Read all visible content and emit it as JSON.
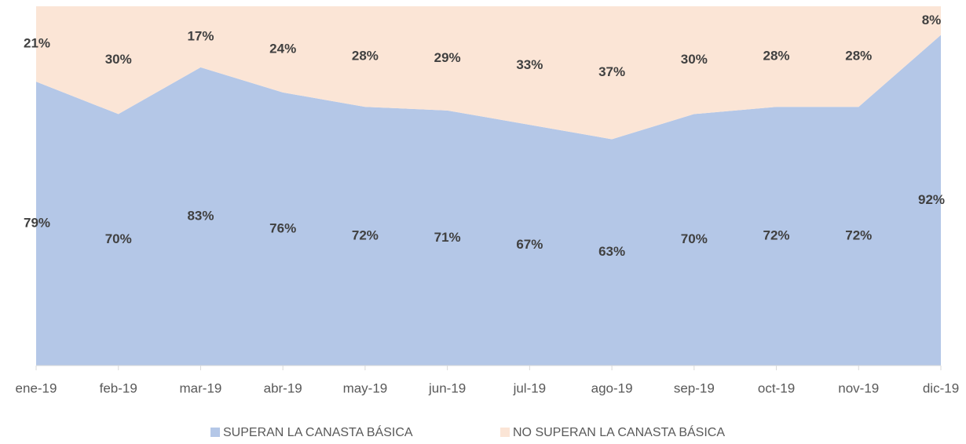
{
  "chart_data": {
    "type": "stacked_area",
    "categories": [
      "ene-19",
      "feb-19",
      "mar-19",
      "abr-19",
      "may-19",
      "jun-19",
      "jul-19",
      "ago-19",
      "sep-19",
      "oct-19",
      "nov-19",
      "dic-19"
    ],
    "series": [
      {
        "name": "SUPERAN LA CANASTA BÁSICA",
        "color": "#b4c7e7",
        "values": [
          79,
          70,
          83,
          76,
          72,
          71,
          67,
          63,
          70,
          72,
          72,
          92
        ],
        "value_labels": [
          "79%",
          "70%",
          "83%",
          "76%",
          "72%",
          "71%",
          "67%",
          "63%",
          "70%",
          "72%",
          "72%",
          "92%"
        ]
      },
      {
        "name": "NO SUPERAN LA CANASTA BÁSICA",
        "color": "#fbe5d6",
        "values": [
          21,
          30,
          17,
          24,
          28,
          29,
          33,
          37,
          30,
          28,
          28,
          8
        ],
        "value_labels": [
          "21%",
          "30%",
          "17%",
          "24%",
          "28%",
          "29%",
          "33%",
          "37%",
          "30%",
          "28%",
          "28%",
          "8%"
        ]
      }
    ],
    "ylim": [
      0,
      100
    ],
    "legend": "bottom"
  }
}
